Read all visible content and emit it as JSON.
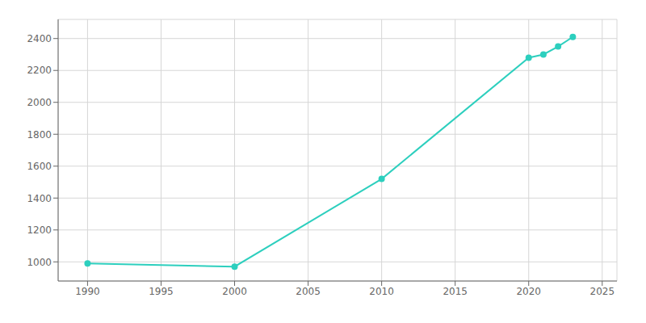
{
  "chart_data": {
    "type": "line",
    "x": [
      1990,
      2000,
      2010,
      2020,
      2021,
      2022,
      2023
    ],
    "values": [
      990,
      970,
      1520,
      2280,
      2300,
      2350,
      2410
    ],
    "color": "#2dcfbe",
    "marker": "circle",
    "xlim": [
      1988,
      2026
    ],
    "ylim": [
      880,
      2520
    ],
    "xticks": [
      1990,
      1995,
      2000,
      2005,
      2010,
      2015,
      2020,
      2025
    ],
    "yticks": [
      1000,
      1200,
      1400,
      1600,
      1800,
      2000,
      2200,
      2400
    ],
    "grid": true
  }
}
